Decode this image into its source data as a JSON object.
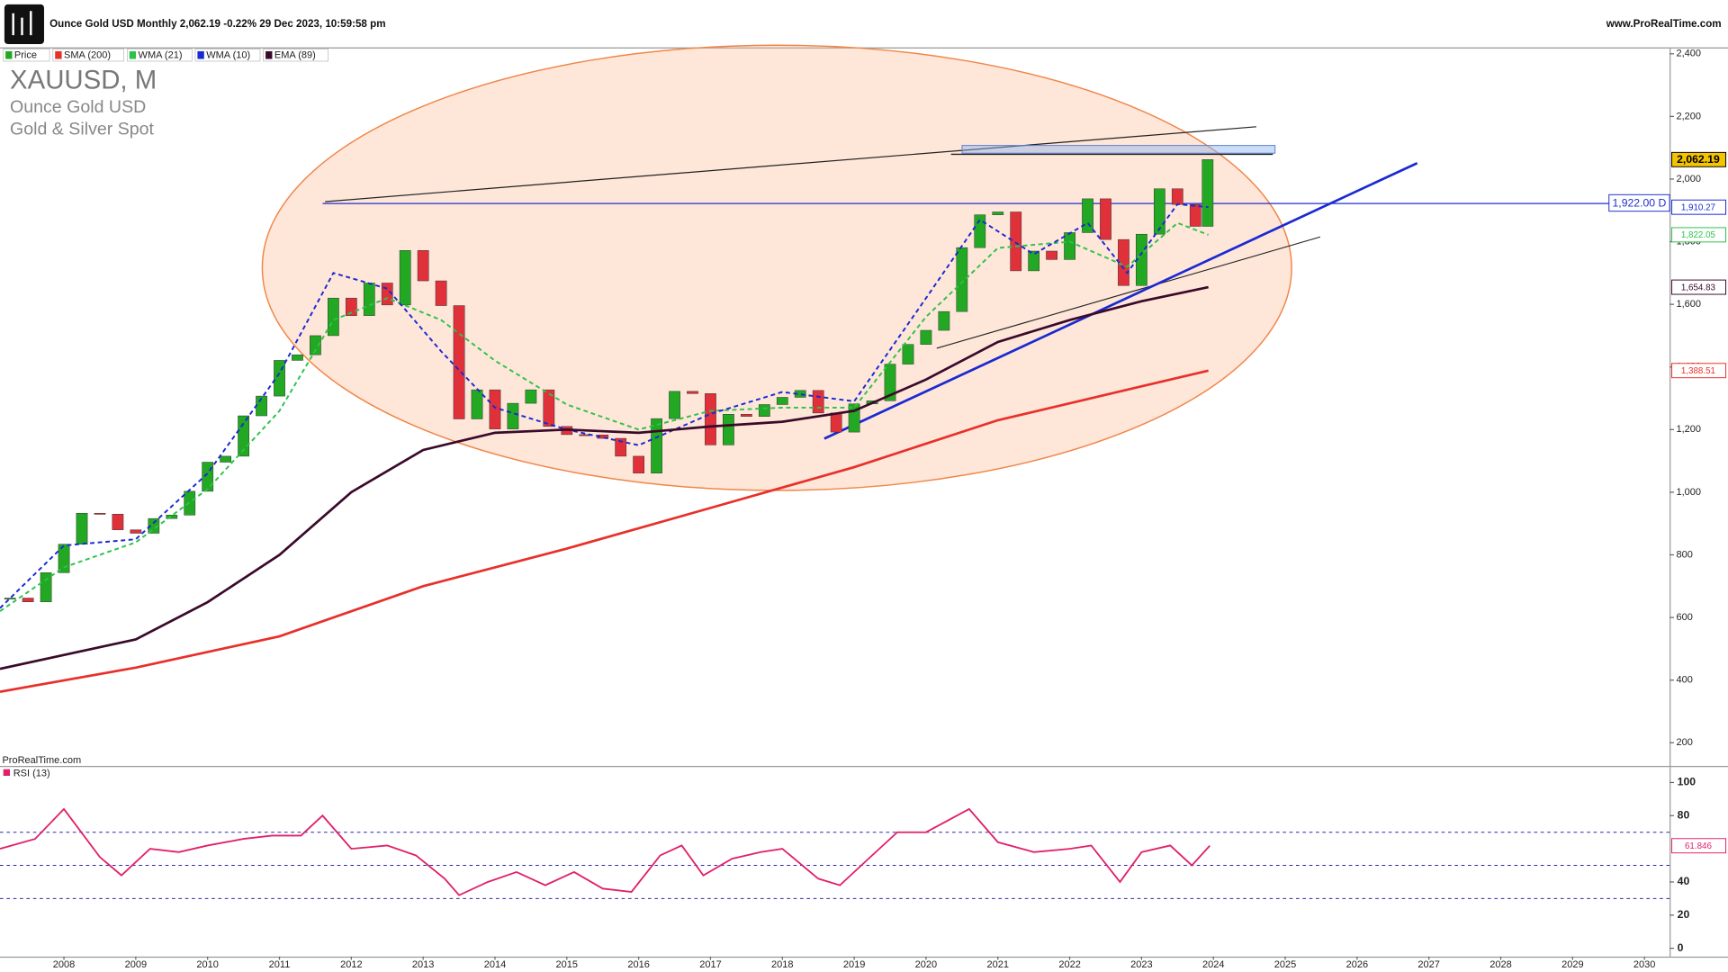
{
  "header": {
    "title": "Ounce Gold USD Monthly 2,062.19 -0.22% 29 Dec 2023, 10:59:58 pm",
    "site": "www.ProRealTime.com"
  },
  "chart_data": [
    {
      "type": "candlestick",
      "symbol": "XAUUSD, M",
      "subtitle": [
        "Ounce Gold USD",
        "Gold & Silver Spot"
      ],
      "watermark": "ProRealTime.com",
      "xlim": [
        2007.11,
        2030.35
      ],
      "ylim": [
        126,
        2417
      ],
      "yticks": [
        {
          "value": 200,
          "label": "200"
        },
        {
          "value": 400,
          "label": "400"
        },
        {
          "value": 600,
          "label": "600"
        },
        {
          "value": 800,
          "label": "800"
        },
        {
          "value": 1000,
          "label": "1,000"
        },
        {
          "value": 1200,
          "label": "1,200"
        },
        {
          "value": 1400,
          "label": "1,400"
        },
        {
          "value": 1600,
          "label": "1,600"
        },
        {
          "value": 1800,
          "label": "1,800"
        },
        {
          "value": 2000,
          "label": "2,000"
        },
        {
          "value": 2200,
          "label": "2,200"
        },
        {
          "value": 2400,
          "label": "2,400"
        }
      ],
      "level": {
        "value": 1922,
        "label": "1,922.00 D",
        "start": 2011.6,
        "color": "#1f2fd0"
      },
      "series": [
        {
          "name": "Price",
          "type": "candle",
          "color": "#22a822",
          "down_color": "#e0303a",
          "tag_color": "#f5c400",
          "last_label": "2,062.19",
          "x": [
            2007.25,
            2007.5,
            2007.75,
            2008.0,
            2008.25,
            2008.5,
            2008.75,
            2009.0,
            2009.25,
            2009.5,
            2009.75,
            2010.0,
            2010.25,
            2010.5,
            2010.75,
            2011.0,
            2011.25,
            2011.5,
            2011.75,
            2012.0,
            2012.25,
            2012.5,
            2012.75,
            2013.0,
            2013.25,
            2013.5,
            2013.75,
            2014.0,
            2014.25,
            2014.5,
            2014.75,
            2015.0,
            2015.25,
            2015.5,
            2015.75,
            2016.0,
            2016.25,
            2016.5,
            2016.75,
            2017.0,
            2017.25,
            2017.5,
            2017.75,
            2018.0,
            2018.25,
            2018.5,
            2018.75,
            2019.0,
            2019.25,
            2019.5,
            2019.75,
            2020.0,
            2020.25,
            2020.5,
            2020.75,
            2021.0,
            2021.25,
            2021.5,
            2021.75,
            2022.0,
            2022.25,
            2022.5,
            2022.75,
            2023.0,
            2023.25,
            2023.5,
            2023.75,
            2023.92
          ],
          "values": [
            662,
            650,
            743,
            834,
            933,
            930,
            880,
            869,
            916,
            927,
            1003,
            1096,
            1115,
            1244,
            1307,
            1421,
            1439,
            1500,
            1620,
            1564,
            1668,
            1598,
            1772,
            1675,
            1596,
            1234,
            1327,
            1202,
            1284,
            1327,
            1210,
            1184,
            1183,
            1172,
            1115,
            1061,
            1235,
            1322,
            1315,
            1151,
            1249,
            1242,
            1280,
            1303,
            1325,
            1253,
            1192,
            1282,
            1292,
            1409,
            1472,
            1517,
            1577,
            1781,
            1886,
            1895,
            1707,
            1770,
            1743,
            1829,
            1937,
            1807,
            1660,
            1824,
            1969,
            1919,
            1849,
            2062.19
          ]
        },
        {
          "name": "SMA (200)",
          "type": "line",
          "color": "#e8302a",
          "width": 2.2,
          "last_label": "1,388.51",
          "x": [
            2007.11,
            2009,
            2011,
            2013,
            2015,
            2017,
            2019,
            2021,
            2023.93
          ],
          "values": [
            363,
            440,
            540,
            700,
            820,
            950,
            1080,
            1230,
            1388.51
          ]
        },
        {
          "name": "WMA (21)",
          "type": "line",
          "color": "#2ec24a",
          "dash": true,
          "width": 1.6,
          "last_label": "1,822.05",
          "x": [
            2007.11,
            2008,
            2009,
            2010,
            2011,
            2011.75,
            2012.5,
            2013.25,
            2014,
            2015,
            2016,
            2017,
            2018,
            2019,
            2020,
            2021,
            2022,
            2022.8,
            2023.5,
            2023.93
          ],
          "values": [
            620,
            760,
            840,
            1010,
            1260,
            1550,
            1620,
            1550,
            1420,
            1280,
            1200,
            1260,
            1270,
            1270,
            1560,
            1780,
            1800,
            1720,
            1860,
            1822.05
          ]
        },
        {
          "name": "WMA (10)",
          "type": "line",
          "color": "#1a2ad0",
          "dash": true,
          "width": 1.6,
          "last_label": "1,910.27",
          "x": [
            2007.11,
            2008,
            2009,
            2010,
            2011,
            2011.75,
            2012.5,
            2013.25,
            2014,
            2015,
            2016,
            2017,
            2018,
            2019,
            2020,
            2020.75,
            2021.5,
            2022.25,
            2022.8,
            2023.5,
            2023.93
          ],
          "values": [
            630,
            830,
            850,
            1060,
            1380,
            1700,
            1650,
            1450,
            1270,
            1200,
            1150,
            1250,
            1320,
            1290,
            1620,
            1870,
            1760,
            1860,
            1700,
            1920,
            1910.27
          ]
        },
        {
          "name": "EMA (89)",
          "type": "line",
          "color": "#3a0a2a",
          "width": 2.2,
          "last_label": "1,654.83",
          "x": [
            2007.11,
            2009,
            2010,
            2011,
            2012,
            2013,
            2014,
            2015,
            2016,
            2017,
            2018,
            2019,
            2020,
            2021,
            2022,
            2023,
            2023.93
          ],
          "values": [
            436,
            530,
            649,
            800,
            1000,
            1135,
            1190,
            1200,
            1190,
            1210,
            1225,
            1260,
            1360,
            1480,
            1550,
            1610,
            1654.83
          ]
        }
      ]
    },
    {
      "type": "line",
      "title": "RSI (13)",
      "color": "#e0206a",
      "last_label": "61.846",
      "xlim": [
        2007.11,
        2030.35
      ],
      "ylim": [
        -5,
        110
      ],
      "yticks": [
        0,
        20,
        40,
        80,
        100
      ],
      "levels": [
        30,
        50,
        70
      ],
      "xticks": [
        2008,
        2009,
        2010,
        2011,
        2012,
        2013,
        2014,
        2015,
        2016,
        2017,
        2018,
        2019,
        2020,
        2021,
        2022,
        2023,
        2024,
        2025,
        2026,
        2027,
        2028,
        2029,
        2030
      ],
      "x": [
        2007.11,
        2007.6,
        2008.0,
        2008.5,
        2008.8,
        2009.2,
        2009.6,
        2010.0,
        2010.5,
        2010.9,
        2011.3,
        2011.6,
        2012.0,
        2012.5,
        2012.9,
        2013.3,
        2013.5,
        2013.9,
        2014.3,
        2014.7,
        2015.1,
        2015.5,
        2015.9,
        2016.3,
        2016.6,
        2016.9,
        2017.3,
        2017.7,
        2018.0,
        2018.5,
        2018.8,
        2019.2,
        2019.6,
        2020.0,
        2020.6,
        2021.0,
        2021.5,
        2022.0,
        2022.3,
        2022.7,
        2023.0,
        2023.4,
        2023.7,
        2023.95
      ],
      "values": [
        60,
        66,
        84,
        55,
        44,
        60,
        58,
        62,
        66,
        68,
        68,
        80,
        60,
        62,
        56,
        42,
        32,
        40,
        46,
        38,
        46,
        36,
        34,
        56,
        62,
        44,
        54,
        58,
        60,
        42,
        38,
        54,
        70,
        70,
        84,
        64,
        58,
        60,
        62,
        40,
        58,
        62,
        50,
        61.846
      ]
    }
  ]
}
